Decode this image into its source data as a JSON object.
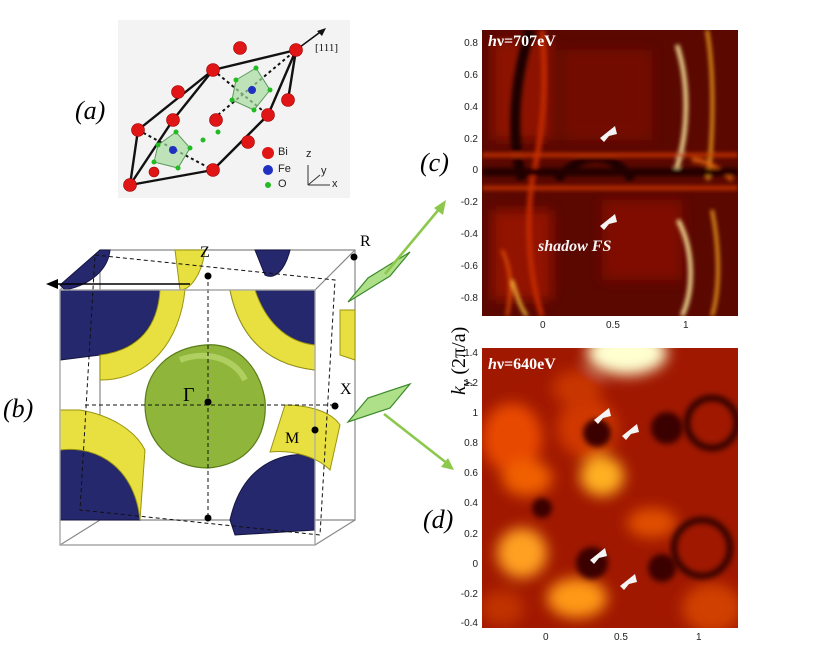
{
  "panel_labels": {
    "a": "(a)",
    "b": "(b)",
    "c": "(c)",
    "d": "(d)"
  },
  "crystal": {
    "direction": "[111]",
    "legend": [
      {
        "label": "Bi",
        "color": "#e01515"
      },
      {
        "label": "Fe",
        "color": "#2030c0"
      },
      {
        "label": "O",
        "color": "#22bb22"
      }
    ],
    "axes": {
      "z": "z",
      "y": "y",
      "x": "x"
    }
  },
  "bz": {
    "points": {
      "Z": "Z",
      "R": "R",
      "Gamma": "Γ",
      "X": "X",
      "M": "M"
    },
    "colors": {
      "electron_pocket": "#8fb63a",
      "hole_yellow": "#e8e040",
      "hole_blue": "#26286e"
    }
  },
  "map_c": {
    "photon_label_h": "h",
    "photon_label_rest": "ν=707eV",
    "annotation": "shadow FS",
    "y_ticks": [
      "0.8",
      "0.6",
      "0.4",
      "0.2",
      "0",
      "-0.2",
      "-0.4",
      "-0.6",
      "-0.8"
    ],
    "x_ticks": [
      "0",
      "0.5",
      "1"
    ]
  },
  "map_d": {
    "photon_label_h": "h",
    "photon_label_rest": "ν=640eV",
    "y_ticks": [
      "1.4",
      "1.2",
      "1",
      "0.8",
      "0.6",
      "0.4",
      "0.2",
      "0",
      "-0.2",
      "-0.4"
    ],
    "x_ticks": [
      "0",
      "0.5",
      "1"
    ]
  },
  "y_axis_label": {
    "k": "k",
    "sub": "y",
    "unit": " (2π/a)"
  },
  "colors": {
    "arrow_green": "#8cc84b",
    "map_dark": "#1a0000",
    "map_mid": "#b01800",
    "map_bright": "#ffe060"
  }
}
